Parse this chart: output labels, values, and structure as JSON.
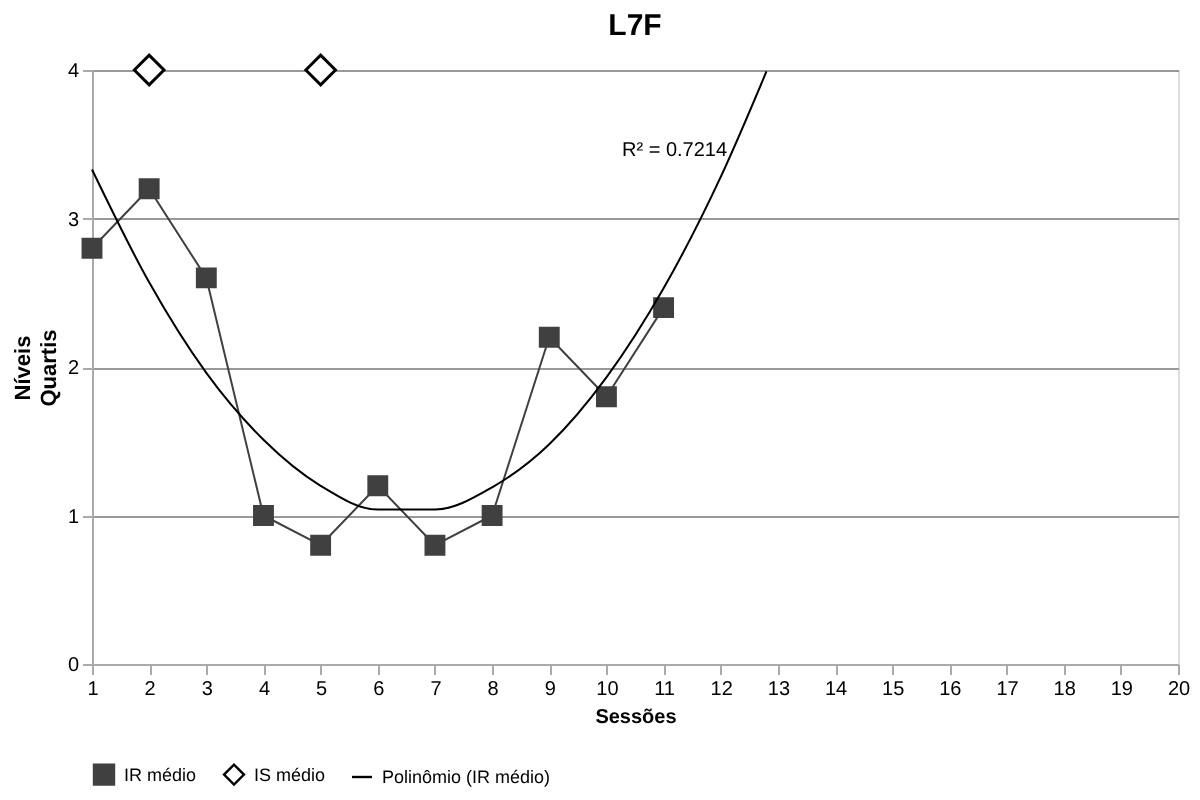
{
  "chart_data": {
    "type": "line",
    "title": "L7F",
    "xlabel": "Sessões",
    "ylabel": "Níveis\nQuartis",
    "xlim": [
      1,
      20
    ],
    "xticks": [
      1,
      2,
      3,
      4,
      5,
      6,
      7,
      8,
      9,
      10,
      11,
      12,
      13,
      14,
      15,
      16,
      17,
      18,
      19,
      20
    ],
    "ylim": [
      0,
      4
    ],
    "yticks": [
      0,
      1,
      2,
      3,
      4
    ],
    "grid": "y",
    "legend": "bottom",
    "series": [
      {
        "name": "IR médio",
        "marker": "square",
        "color": "#404040",
        "x": [
          1,
          2,
          3,
          4,
          5,
          6,
          7,
          8,
          9,
          10,
          11
        ],
        "values": [
          2.8,
          3.2,
          2.6,
          1.0,
          0.8,
          1.2,
          0.8,
          1.0,
          2.2,
          1.8,
          2.4
        ]
      },
      {
        "name": "IS médio",
        "type": "scatter",
        "marker": "diamond",
        "color": "#000000",
        "x": [
          2,
          5
        ],
        "values": [
          4,
          4
        ]
      },
      {
        "name": "Polinômio (IR médio)",
        "marker": "none",
        "color": "#000000",
        "x": [
          1,
          2,
          3,
          4,
          5,
          6,
          7,
          8,
          9,
          10,
          11,
          12,
          12.8
        ],
        "values": [
          3.33,
          2.57,
          1.96,
          1.51,
          1.2,
          1.04,
          1.04,
          1.19,
          1.48,
          1.93,
          2.53,
          3.28,
          3.99
        ]
      }
    ],
    "annotations": [
      "R² = 0.7214"
    ]
  }
}
